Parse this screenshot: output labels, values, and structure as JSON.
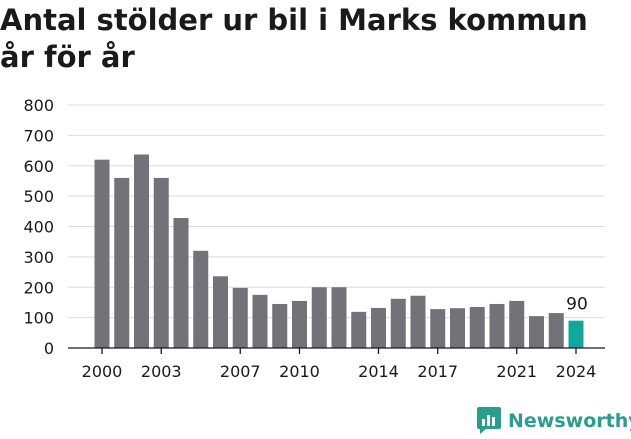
{
  "chart_data": {
    "type": "bar",
    "title": "Antal stölder ur bil i Marks kommun år för år",
    "xlabel": "",
    "ylabel": "",
    "ylim": [
      0,
      800
    ],
    "yticks": [
      0,
      100,
      200,
      300,
      400,
      500,
      600,
      700,
      800
    ],
    "xticks": [
      "2000",
      "2003",
      "2007",
      "2010",
      "2014",
      "2017",
      "2021",
      "2024"
    ],
    "categories": [
      "2000",
      "2001",
      "2002",
      "2003",
      "2004",
      "2005",
      "2006",
      "2007",
      "2008",
      "2009",
      "2010",
      "2011",
      "2012",
      "2013",
      "2014",
      "2015",
      "2016",
      "2017",
      "2018",
      "2019",
      "2020",
      "2021",
      "2022",
      "2023",
      "2024"
    ],
    "values": [
      620,
      560,
      637,
      560,
      428,
      320,
      236,
      198,
      175,
      145,
      155,
      200,
      200,
      119,
      132,
      162,
      172,
      128,
      131,
      135,
      145,
      155,
      105,
      115,
      90
    ],
    "bar_color": "#737278",
    "highlight_color": "#12a79d",
    "highlight_category": "2024",
    "annotations": [
      {
        "category": "2024",
        "text": "90"
      }
    ],
    "grid": true
  },
  "brand": {
    "name": "Newsworthy",
    "logo_icon": "newsworthy-chart-bubble-icon",
    "color": "#2a9d8f"
  }
}
